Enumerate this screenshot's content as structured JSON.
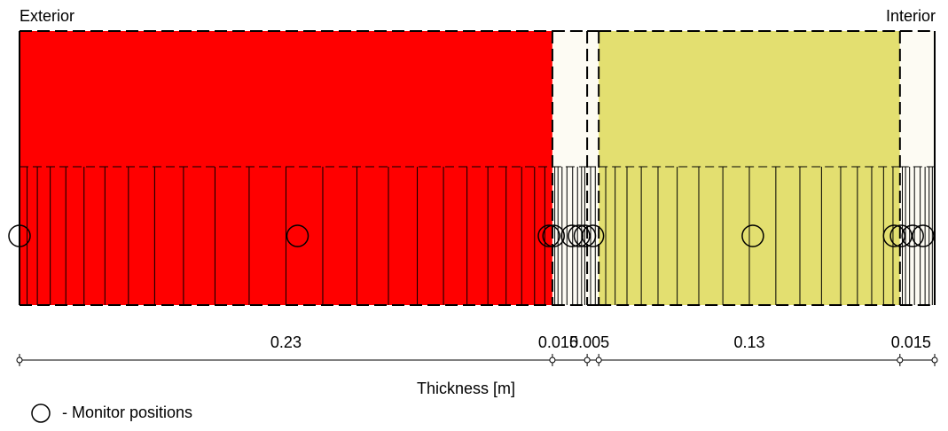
{
  "labels": {
    "exterior": "Exterior",
    "interior": "Interior",
    "axis_title": "Thickness [m]",
    "legend_text": "- Monitor positions"
  },
  "layers": [
    {
      "thickness": 0.23,
      "label": "0.23",
      "fill": "#ff0000",
      "cells": 24
    },
    {
      "thickness": 0.015,
      "label": "0.015",
      "fill": "#fdfbf3",
      "cells": 9
    },
    {
      "thickness": 0.005,
      "label": "0.005",
      "fill": "#fdfbf3",
      "cells": 3
    },
    {
      "thickness": 0.13,
      "label": "0.13",
      "fill": "#e3df70",
      "cells": 18
    },
    {
      "thickness": 0.015,
      "label": "0.015",
      "fill": "#fdfbf3",
      "cells": 9
    }
  ],
  "monitor_positions_m": [
    0.0,
    0.12,
    0.2285,
    0.2305,
    0.2385,
    0.2415,
    0.244,
    0.2475,
    0.3165,
    0.3775,
    0.3805,
    0.3855,
    0.39
  ],
  "colors": {
    "outline": "#000000"
  }
}
